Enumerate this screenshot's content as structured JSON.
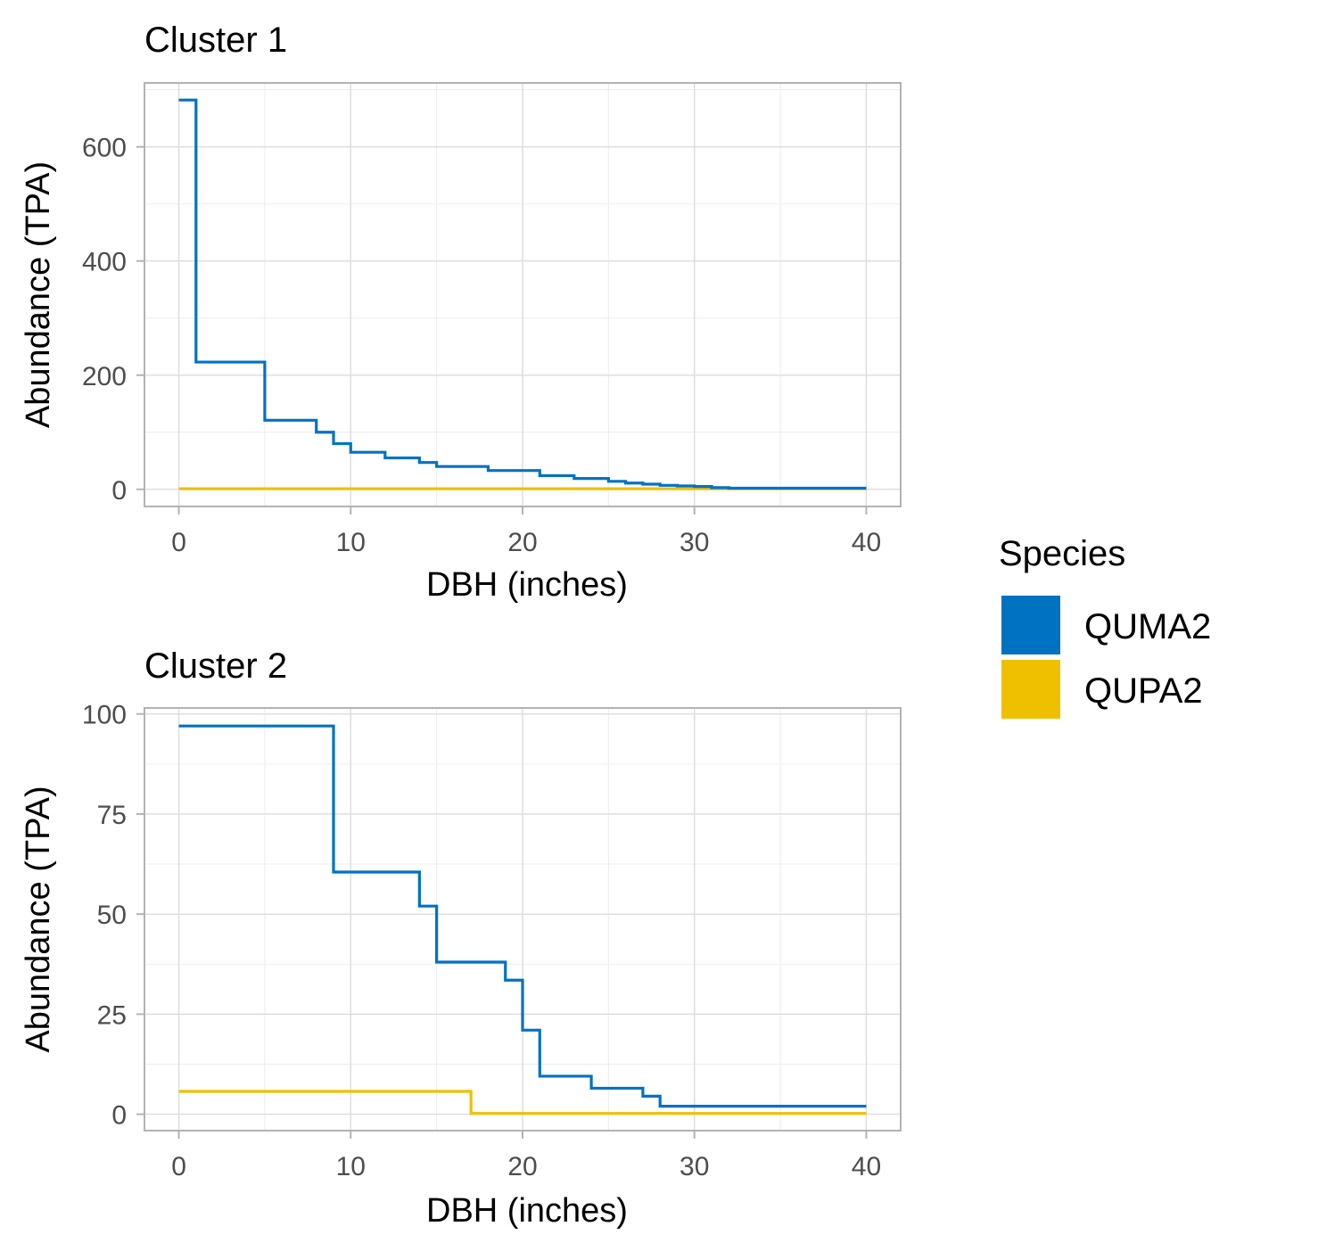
{
  "chart_data": [
    {
      "type": "line",
      "step": true,
      "title": "Cluster 1",
      "xlabel": "DBH (inches)",
      "ylabel": "Abundance (TPA)",
      "xlim": [
        -2,
        42
      ],
      "ylim": [
        -30,
        712
      ],
      "xticks": [
        0,
        10,
        20,
        30,
        40
      ],
      "yticks": [
        0,
        200,
        400,
        600
      ],
      "grid": true,
      "series": [
        {
          "name": "QUMA2",
          "color": "#0072C2",
          "points": [
            [
              0,
              682
            ],
            [
              1,
              223
            ],
            [
              5,
              121
            ],
            [
              8,
              100
            ],
            [
              9,
              80
            ],
            [
              10,
              65
            ],
            [
              12,
              55
            ],
            [
              14,
              47
            ],
            [
              15,
              40
            ],
            [
              18,
              33
            ],
            [
              21,
              24
            ],
            [
              23,
              19
            ],
            [
              25,
              14
            ],
            [
              26,
              11
            ],
            [
              27,
              9
            ],
            [
              28,
              7
            ],
            [
              29,
              6
            ],
            [
              30,
              5
            ],
            [
              31,
              3
            ],
            [
              32,
              2
            ],
            [
              40,
              2
            ]
          ]
        },
        {
          "name": "QUPA2",
          "color": "#EFC000",
          "points": [
            [
              0,
              1
            ],
            [
              40,
              1
            ]
          ]
        }
      ]
    },
    {
      "type": "line",
      "step": true,
      "title": "Cluster 2",
      "xlabel": "DBH (inches)",
      "ylabel": "Abundance (TPA)",
      "xlim": [
        -2,
        42
      ],
      "ylim": [
        -4.1,
        101.5
      ],
      "xticks": [
        0,
        10,
        20,
        30,
        40
      ],
      "yticks": [
        0,
        25,
        50,
        75,
        100
      ],
      "grid": true,
      "series": [
        {
          "name": "QUMA2",
          "color": "#0072C2",
          "points": [
            [
              0,
              97
            ],
            [
              9,
              60.5
            ],
            [
              14,
              52
            ],
            [
              15,
              38
            ],
            [
              19,
              33.5
            ],
            [
              20,
              21
            ],
            [
              21,
              9.5
            ],
            [
              24,
              6.5
            ],
            [
              27,
              4.5
            ],
            [
              28,
              2
            ],
            [
              40,
              2
            ]
          ]
        },
        {
          "name": "QUPA2",
          "color": "#EFC000",
          "points": [
            [
              0,
              5.7
            ],
            [
              17,
              0.2
            ],
            [
              40,
              0.2
            ]
          ]
        }
      ]
    }
  ],
  "legend": {
    "title": "Species",
    "position": "right",
    "items": [
      {
        "label": "QUMA2",
        "color": "#0072C2"
      },
      {
        "label": "QUPA2",
        "color": "#EFC000"
      }
    ]
  }
}
